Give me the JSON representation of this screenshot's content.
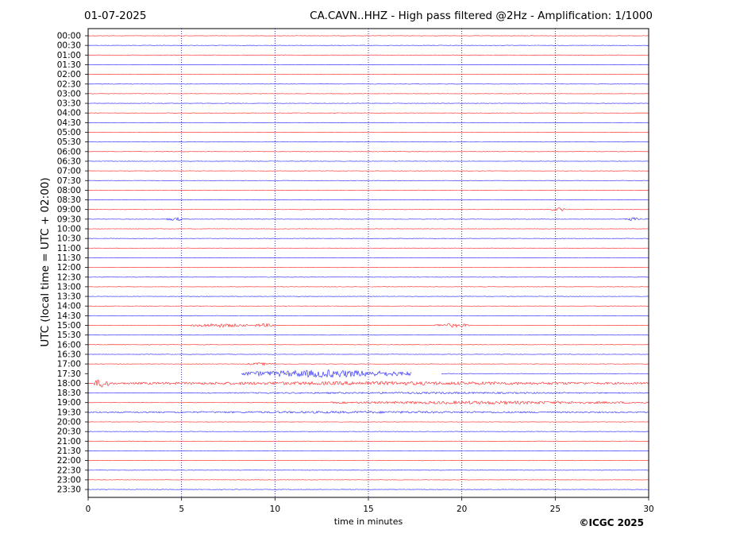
{
  "header": {
    "date": "01-07-2025",
    "title": "CA.CAVN..HHZ - High pass filtered @2Hz - Amplification: 1/1000"
  },
  "footer": {
    "copyright": "©ICGC 2025"
  },
  "colors": {
    "trace_even": "#ff0000",
    "trace_odd": "#0000ff",
    "grid": "#00008b",
    "axis": "#000000"
  },
  "chart_data": {
    "type": "line",
    "title": "CA.CAVN..HHZ - High pass filtered @2Hz - Amplification: 1/1000",
    "xlabel": "time in minutes",
    "ylabel": "UTC (local time = UTC + 02:00)",
    "xlim": [
      0,
      30
    ],
    "x_ticks": [
      0,
      5,
      10,
      15,
      20,
      25,
      30
    ],
    "vertical_grid_minutes": [
      5,
      10,
      15,
      20,
      25
    ],
    "grid": true,
    "rows": [
      "00:00",
      "00:30",
      "01:00",
      "01:30",
      "02:00",
      "02:30",
      "03:00",
      "03:30",
      "04:00",
      "04:30",
      "05:00",
      "05:30",
      "06:00",
      "06:30",
      "07:00",
      "07:30",
      "08:00",
      "08:30",
      "09:00",
      "09:30",
      "10:00",
      "10:30",
      "11:00",
      "11:30",
      "12:00",
      "12:30",
      "13:00",
      "13:30",
      "14:00",
      "14:30",
      "15:00",
      "15:30",
      "16:00",
      "16:30",
      "17:00",
      "17:30",
      "18:00",
      "18:30",
      "19:00",
      "19:30",
      "20:00",
      "20:30",
      "21:00",
      "21:30",
      "22:00",
      "22:30",
      "23:00",
      "23:30"
    ],
    "events": [
      {
        "row": "09:00",
        "start_min": 24.8,
        "end_min": 25.6,
        "amplitude": 0.2
      },
      {
        "row": "09:30",
        "start_min": 4.2,
        "end_min": 5.2,
        "amplitude": 0.18
      },
      {
        "row": "09:30",
        "start_min": 28.6,
        "end_min": 29.5,
        "amplitude": 0.2
      },
      {
        "row": "15:00",
        "start_min": 5.5,
        "end_min": 8.5,
        "amplitude": 0.22
      },
      {
        "row": "15:00",
        "start_min": 8.8,
        "end_min": 10.0,
        "amplitude": 0.2
      },
      {
        "row": "15:00",
        "start_min": 18.5,
        "end_min": 20.5,
        "amplitude": 0.22
      },
      {
        "row": "17:00",
        "start_min": 8.5,
        "end_min": 10.0,
        "amplitude": 0.15
      },
      {
        "row": "17:30",
        "start_min": 8.2,
        "end_min": 17.3,
        "amplitude": 0.42
      },
      {
        "row": "18:00",
        "start_min": 0.3,
        "end_min": 1.2,
        "amplitude": 0.5
      },
      {
        "row": "18:00",
        "start_min": 1.2,
        "end_min": 30.0,
        "amplitude": 0.2
      },
      {
        "row": "18:30",
        "start_min": 6.0,
        "end_min": 30.0,
        "amplitude": 0.1
      },
      {
        "row": "19:00",
        "start_min": 13.0,
        "end_min": 30.0,
        "amplitude": 0.18
      },
      {
        "row": "19:30",
        "start_min": 0.0,
        "end_min": 30.0,
        "amplitude": 0.12
      }
    ],
    "data_gaps": [
      {
        "row": "17:30",
        "start_min": 0.0,
        "end_min": 8.2
      },
      {
        "row": "17:30",
        "start_min": 17.3,
        "end_min": 18.9
      }
    ]
  }
}
